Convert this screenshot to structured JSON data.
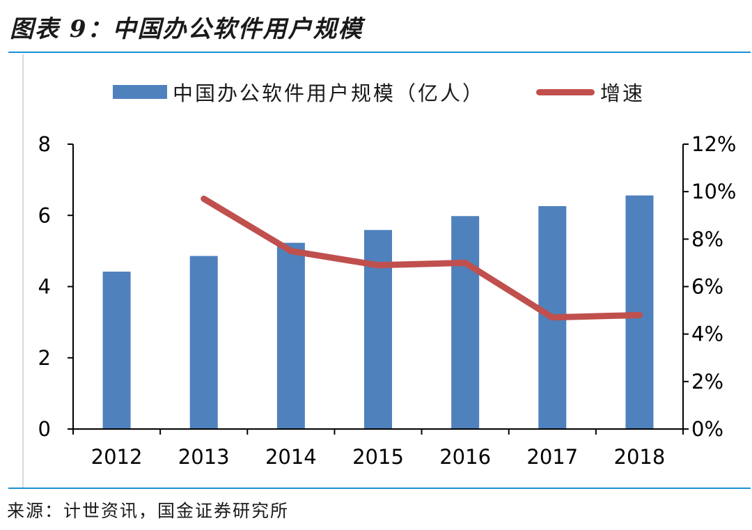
{
  "figure": {
    "title": "图表 9：中国办公软件用户规模",
    "source": "来源：计世资讯，国金证券研究所"
  },
  "legend": {
    "bar_label": "中国办公软件用户规模（亿人）",
    "line_label": "增速"
  },
  "colors": {
    "bar": "#4f81bd",
    "line": "#c0504d",
    "rule": "#1a8fd6"
  },
  "chart_data": {
    "type": "bar",
    "categories": [
      "2012",
      "2013",
      "2014",
      "2015",
      "2016",
      "2017",
      "2018"
    ],
    "series": [
      {
        "name": "中国办公软件用户规模（亿人）",
        "type": "bar",
        "axis": "left",
        "values": [
          4.42,
          4.86,
          5.23,
          5.59,
          5.98,
          6.26,
          6.56
        ]
      },
      {
        "name": "增速",
        "type": "line",
        "axis": "right",
        "values": [
          null,
          9.7,
          7.5,
          6.9,
          7.0,
          4.7,
          4.8
        ]
      }
    ],
    "y_left": {
      "min": 0,
      "max": 8,
      "ticks": [
        0,
        2,
        4,
        6,
        8
      ],
      "tick_labels": [
        "0",
        "2",
        "4",
        "6",
        "8"
      ]
    },
    "y_right": {
      "min": 0,
      "max": 12,
      "ticks": [
        0,
        2,
        4,
        6,
        8,
        10,
        12
      ],
      "tick_labels": [
        "0%",
        "2%",
        "4%",
        "6%",
        "8%",
        "10%",
        "12%"
      ]
    },
    "grid": false,
    "legend_position": "top"
  }
}
